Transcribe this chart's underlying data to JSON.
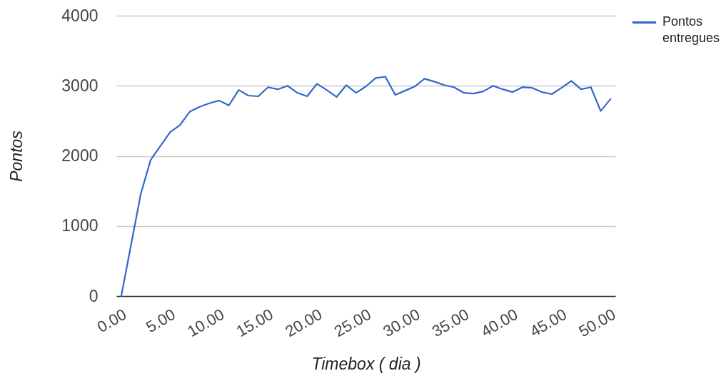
{
  "chart_data": {
    "type": "line",
    "xlabel": "Timebox ( dia )",
    "ylabel": "Pontos",
    "x": [
      0,
      1,
      2,
      3,
      4,
      5,
      6,
      7,
      8,
      9,
      10,
      11,
      12,
      13,
      14,
      15,
      16,
      17,
      18,
      19,
      20,
      21,
      22,
      23,
      24,
      25,
      26,
      27,
      28,
      29,
      30,
      31,
      32,
      33,
      34,
      35,
      36,
      37,
      38,
      39,
      40,
      41,
      42,
      43,
      44,
      45,
      46,
      47,
      48,
      49,
      50
    ],
    "series": [
      {
        "name": "Pontos entregues",
        "color": "#3366cc",
        "values": [
          0,
          730,
          1460,
          1940,
          2140,
          2340,
          2440,
          2630,
          2700,
          2750,
          2790,
          2720,
          2940,
          2860,
          2850,
          2980,
          2950,
          3000,
          2900,
          2850,
          3030,
          2940,
          2840,
          3010,
          2900,
          2990,
          3110,
          3130,
          2870,
          2930,
          2990,
          3100,
          3060,
          3010,
          2980,
          2900,
          2890,
          2920,
          3000,
          2950,
          2910,
          2980,
          2970,
          2910,
          2880,
          2970,
          3070,
          2950,
          2980,
          2640,
          2810
        ]
      }
    ],
    "xlim": [
      -0.5,
      50.5
    ],
    "xticks": [
      {
        "value": 0,
        "label": "0.00"
      },
      {
        "value": 5,
        "label": "5.00"
      },
      {
        "value": 10,
        "label": "10.00"
      },
      {
        "value": 15,
        "label": "15.00"
      },
      {
        "value": 20,
        "label": "20.00"
      },
      {
        "value": 25,
        "label": "25.00"
      },
      {
        "value": 30,
        "label": "30.00"
      },
      {
        "value": 35,
        "label": "35.00"
      },
      {
        "value": 40,
        "label": "40.00"
      },
      {
        "value": 45,
        "label": "45.00"
      },
      {
        "value": 50,
        "label": "50.00"
      }
    ],
    "ylim": [
      0,
      4000
    ],
    "yticks": [
      0,
      1000,
      2000,
      3000,
      4000
    ],
    "grid": "y",
    "legend": "top right"
  }
}
